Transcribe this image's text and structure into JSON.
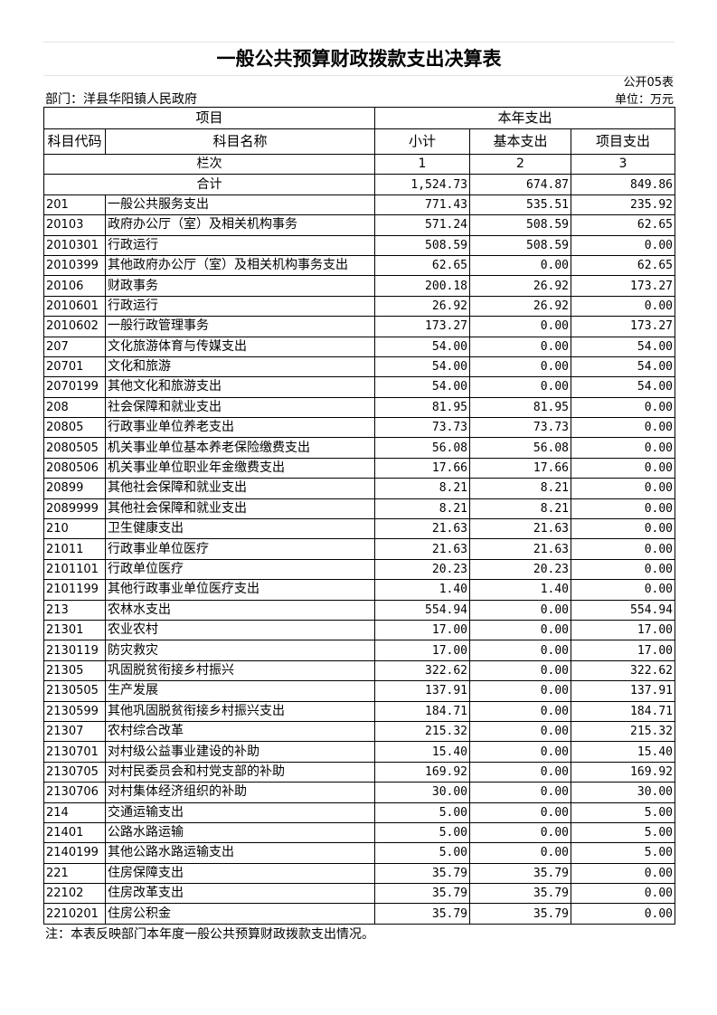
{
  "title": "一般公共预算财政拨款支出决算表",
  "form_no": "公开05表",
  "department": "部门：洋县华阳镇人民政府",
  "unit": "单位：万元",
  "header": {
    "item": "项目",
    "current_year": "本年支出",
    "code": "科目代码",
    "name": "科目名称",
    "subtotal": "小计",
    "basic": "基本支出",
    "project": "项目支出",
    "column_no": "栏次",
    "col1": "1",
    "col2": "2",
    "col3": "3"
  },
  "total": {
    "label": "合计",
    "subtotal": "1,524.73",
    "basic": "674.87",
    "project": "849.86"
  },
  "rows": [
    [
      "201",
      "一般公共服务支出",
      "771.43",
      "535.51",
      "235.92"
    ],
    [
      "20103",
      "政府办公厅（室）及相关机构事务",
      "571.24",
      "508.59",
      "62.65"
    ],
    [
      "2010301",
      "行政运行",
      "508.59",
      "508.59",
      "0.00"
    ],
    [
      "2010399",
      "其他政府办公厅（室）及相关机构事务支出",
      "62.65",
      "0.00",
      "62.65"
    ],
    [
      "20106",
      "财政事务",
      "200.18",
      "26.92",
      "173.27"
    ],
    [
      "2010601",
      "行政运行",
      "26.92",
      "26.92",
      "0.00"
    ],
    [
      "2010602",
      "一般行政管理事务",
      "173.27",
      "0.00",
      "173.27"
    ],
    [
      "207",
      "文化旅游体育与传媒支出",
      "54.00",
      "0.00",
      "54.00"
    ],
    [
      "20701",
      "文化和旅游",
      "54.00",
      "0.00",
      "54.00"
    ],
    [
      "2070199",
      "其他文化和旅游支出",
      "54.00",
      "0.00",
      "54.00"
    ],
    [
      "208",
      "社会保障和就业支出",
      "81.95",
      "81.95",
      "0.00"
    ],
    [
      "20805",
      "行政事业单位养老支出",
      "73.73",
      "73.73",
      "0.00"
    ],
    [
      "2080505",
      "机关事业单位基本养老保险缴费支出",
      "56.08",
      "56.08",
      "0.00"
    ],
    [
      "2080506",
      "机关事业单位职业年金缴费支出",
      "17.66",
      "17.66",
      "0.00"
    ],
    [
      "20899",
      "其他社会保障和就业支出",
      "8.21",
      "8.21",
      "0.00"
    ],
    [
      "2089999",
      "其他社会保障和就业支出",
      "8.21",
      "8.21",
      "0.00"
    ],
    [
      "210",
      "卫生健康支出",
      "21.63",
      "21.63",
      "0.00"
    ],
    [
      "21011",
      "行政事业单位医疗",
      "21.63",
      "21.63",
      "0.00"
    ],
    [
      "2101101",
      "行政单位医疗",
      "20.23",
      "20.23",
      "0.00"
    ],
    [
      "2101199",
      "其他行政事业单位医疗支出",
      "1.40",
      "1.40",
      "0.00"
    ],
    [
      "213",
      "农林水支出",
      "554.94",
      "0.00",
      "554.94"
    ],
    [
      "21301",
      "农业农村",
      "17.00",
      "0.00",
      "17.00"
    ],
    [
      "2130119",
      "防灾救灾",
      "17.00",
      "0.00",
      "17.00"
    ],
    [
      "21305",
      "巩固脱贫衔接乡村振兴",
      "322.62",
      "0.00",
      "322.62"
    ],
    [
      "2130505",
      "生产发展",
      "137.91",
      "0.00",
      "137.91"
    ],
    [
      "2130599",
      "其他巩固脱贫衔接乡村振兴支出",
      "184.71",
      "0.00",
      "184.71"
    ],
    [
      "21307",
      "农村综合改革",
      "215.32",
      "0.00",
      "215.32"
    ],
    [
      "2130701",
      "对村级公益事业建设的补助",
      "15.40",
      "0.00",
      "15.40"
    ],
    [
      "2130705",
      "对村民委员会和村党支部的补助",
      "169.92",
      "0.00",
      "169.92"
    ],
    [
      "2130706",
      "对村集体经济组织的补助",
      "30.00",
      "0.00",
      "30.00"
    ],
    [
      "214",
      "交通运输支出",
      "5.00",
      "0.00",
      "5.00"
    ],
    [
      "21401",
      "公路水路运输",
      "5.00",
      "0.00",
      "5.00"
    ],
    [
      "2140199",
      "其他公路水路运输支出",
      "5.00",
      "0.00",
      "5.00"
    ],
    [
      "221",
      "住房保障支出",
      "35.79",
      "35.79",
      "0.00"
    ],
    [
      "22102",
      "住房改革支出",
      "35.79",
      "35.79",
      "0.00"
    ],
    [
      "2210201",
      "住房公积金",
      "35.79",
      "35.79",
      "0.00"
    ]
  ],
  "note": "注：本表反映部门本年度一般公共预算财政拨款支出情况。"
}
